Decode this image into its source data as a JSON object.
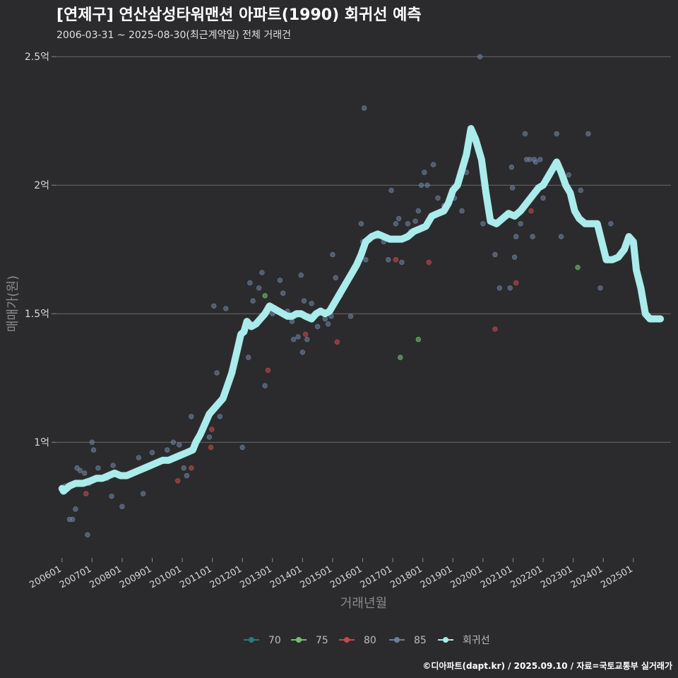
{
  "chart_data": {
    "type": "scatter",
    "title": "[연제구] 연산삼성타워맨션 아파트(1990) 회귀선 예측",
    "subtitle": "2006-03-31 ~ 2025-08-30(최근계약일) 전체 거래건",
    "xlabel": "거래년월",
    "ylabel": "매매가(원)",
    "credit": "©디아파트(dapt.kr) / 2025.09.10 / 자료=국토교통부 실거래가",
    "x_ticks": [
      "200601",
      "200701",
      "200801",
      "200901",
      "201001",
      "201101",
      "201201",
      "201301",
      "201401",
      "201501",
      "201601",
      "201701",
      "201801",
      "201901",
      "202001",
      "202101",
      "202201",
      "202301",
      "202401",
      "202501"
    ],
    "y_ticks": [
      {
        "value": 1.0,
        "label": "1억"
      },
      {
        "value": 1.5,
        "label": "1.5억"
      },
      {
        "value": 2.0,
        "label": "2억"
      },
      {
        "value": 2.5,
        "label": "2.5억"
      }
    ],
    "ylim": [
      0.55,
      2.55
    ],
    "xlim": [
      2005.7,
      2026.25
    ],
    "y_unit": "억",
    "grid": true,
    "legend_position": "bottom",
    "colors": {
      "70": "#2a7a7a",
      "75": "#6fc06f",
      "80": "#c24a4a",
      "85": "#6b7f9e",
      "regression": "#a9eceb"
    },
    "series": [
      {
        "name": "70",
        "points": []
      },
      {
        "name": "75",
        "points": [
          [
            2012.75,
            1.57
          ],
          [
            2017.25,
            1.33
          ],
          [
            2017.85,
            1.4
          ],
          [
            2023.15,
            1.68
          ]
        ]
      },
      {
        "name": "80",
        "points": [
          [
            2006.8,
            0.8
          ],
          [
            2009.85,
            0.85
          ],
          [
            2010.3,
            0.9
          ],
          [
            2010.95,
            0.98
          ],
          [
            2010.98,
            1.05
          ],
          [
            2012.85,
            1.28
          ],
          [
            2014.1,
            1.42
          ],
          [
            2015.15,
            1.39
          ],
          [
            2017.1,
            1.71
          ],
          [
            2018.2,
            1.7
          ],
          [
            2020.4,
            1.44
          ],
          [
            2021.1,
            1.62
          ],
          [
            2021.6,
            1.9
          ]
        ]
      },
      {
        "name": "85",
        "points": [
          [
            2006.1,
            0.83
          ],
          [
            2006.25,
            0.7
          ],
          [
            2006.35,
            0.7
          ],
          [
            2006.45,
            0.74
          ],
          [
            2006.5,
            0.9
          ],
          [
            2006.6,
            0.89
          ],
          [
            2006.75,
            0.88
          ],
          [
            2006.85,
            0.64
          ],
          [
            2006.9,
            0.84
          ],
          [
            2007.0,
            1.0
          ],
          [
            2007.05,
            0.97
          ],
          [
            2007.2,
            0.9
          ],
          [
            2007.5,
            0.86
          ],
          [
            2007.65,
            0.79
          ],
          [
            2007.7,
            0.91
          ],
          [
            2008.0,
            0.75
          ],
          [
            2008.3,
            0.88
          ],
          [
            2008.55,
            0.94
          ],
          [
            2008.7,
            0.8
          ],
          [
            2009.0,
            0.96
          ],
          [
            2009.3,
            0.93
          ],
          [
            2009.5,
            0.97
          ],
          [
            2009.7,
            1.0
          ],
          [
            2009.9,
            0.99
          ],
          [
            2010.05,
            0.9
          ],
          [
            2010.15,
            0.87
          ],
          [
            2010.3,
            1.1
          ],
          [
            2010.9,
            1.02
          ],
          [
            2011.15,
            1.27
          ],
          [
            2011.25,
            1.1
          ],
          [
            2011.45,
            1.52
          ],
          [
            2011.05,
            1.53
          ],
          [
            2012.0,
            0.98
          ],
          [
            2012.2,
            1.33
          ],
          [
            2012.25,
            1.62
          ],
          [
            2012.35,
            1.55
          ],
          [
            2012.55,
            1.6
          ],
          [
            2012.65,
            1.66
          ],
          [
            2012.75,
            1.22
          ],
          [
            2013.0,
            1.5
          ],
          [
            2013.25,
            1.63
          ],
          [
            2013.35,
            1.58
          ],
          [
            2013.5,
            1.51
          ],
          [
            2013.65,
            1.47
          ],
          [
            2013.7,
            1.4
          ],
          [
            2013.85,
            1.41
          ],
          [
            2013.95,
            1.65
          ],
          [
            2014.0,
            1.35
          ],
          [
            2014.05,
            1.55
          ],
          [
            2014.15,
            1.4
          ],
          [
            2014.3,
            1.54
          ],
          [
            2014.5,
            1.45
          ],
          [
            2014.75,
            1.48
          ],
          [
            2014.85,
            1.46
          ],
          [
            2014.95,
            1.49
          ],
          [
            2015.0,
            1.73
          ],
          [
            2015.1,
            1.64
          ],
          [
            2015.25,
            1.57
          ],
          [
            2015.6,
            1.49
          ],
          [
            2015.95,
            1.85
          ],
          [
            2016.0,
            1.78
          ],
          [
            2016.05,
            2.3
          ],
          [
            2016.1,
            1.71
          ],
          [
            2016.25,
            1.79
          ],
          [
            2016.5,
            1.8
          ],
          [
            2016.7,
            1.78
          ],
          [
            2016.85,
            1.71
          ],
          [
            2016.95,
            1.98
          ],
          [
            2017.1,
            1.85
          ],
          [
            2017.2,
            1.87
          ],
          [
            2017.3,
            1.7
          ],
          [
            2017.5,
            1.85
          ],
          [
            2017.6,
            1.82
          ],
          [
            2017.75,
            1.86
          ],
          [
            2017.85,
            1.9
          ],
          [
            2017.95,
            2.0
          ],
          [
            2018.05,
            2.05
          ],
          [
            2018.15,
            2.0
          ],
          [
            2018.35,
            2.08
          ],
          [
            2018.5,
            1.95
          ],
          [
            2018.7,
            1.92
          ],
          [
            2019.05,
            1.95
          ],
          [
            2019.3,
            1.9
          ],
          [
            2019.45,
            2.05
          ],
          [
            2019.6,
            2.18
          ],
          [
            2019.9,
            2.5
          ],
          [
            2020.0,
            1.85
          ],
          [
            2020.1,
            2.0
          ],
          [
            2020.4,
            1.73
          ],
          [
            2020.55,
            1.6
          ],
          [
            2020.9,
            1.6
          ],
          [
            2020.95,
            2.07
          ],
          [
            2020.98,
            1.99
          ],
          [
            2021.05,
            1.72
          ],
          [
            2021.1,
            1.8
          ],
          [
            2021.25,
            1.85
          ],
          [
            2021.4,
            2.2
          ],
          [
            2021.45,
            2.1
          ],
          [
            2021.55,
            2.1
          ],
          [
            2021.65,
            1.8
          ],
          [
            2021.7,
            2.1
          ],
          [
            2021.75,
            2.09
          ],
          [
            2021.85,
            1.99
          ],
          [
            2021.9,
            2.1
          ],
          [
            2022.0,
            1.95
          ],
          [
            2022.45,
            2.2
          ],
          [
            2022.6,
            1.8
          ],
          [
            2022.85,
            2.04
          ],
          [
            2023.25,
            1.98
          ],
          [
            2023.5,
            2.2
          ],
          [
            2023.9,
            1.6
          ],
          [
            2024.25,
            1.85
          ]
        ]
      }
    ],
    "regression": [
      [
        2006.0,
        0.82
      ],
      [
        2006.05,
        0.81
      ],
      [
        2006.25,
        0.83
      ],
      [
        2006.45,
        0.84
      ],
      [
        2006.7,
        0.84
      ],
      [
        2006.95,
        0.85
      ],
      [
        2007.15,
        0.86
      ],
      [
        2007.35,
        0.86
      ],
      [
        2007.55,
        0.87
      ],
      [
        2007.75,
        0.88
      ],
      [
        2007.95,
        0.87
      ],
      [
        2008.15,
        0.87
      ],
      [
        2008.35,
        0.88
      ],
      [
        2008.55,
        0.89
      ],
      [
        2008.75,
        0.9
      ],
      [
        2008.95,
        0.91
      ],
      [
        2009.15,
        0.92
      ],
      [
        2009.35,
        0.93
      ],
      [
        2009.55,
        0.93
      ],
      [
        2009.75,
        0.94
      ],
      [
        2009.95,
        0.95
      ],
      [
        2010.15,
        0.96
      ],
      [
        2010.35,
        0.97
      ],
      [
        2010.45,
        1.0
      ],
      [
        2010.6,
        1.03
      ],
      [
        2010.75,
        1.07
      ],
      [
        2010.9,
        1.11
      ],
      [
        2011.05,
        1.13
      ],
      [
        2011.2,
        1.15
      ],
      [
        2011.35,
        1.17
      ],
      [
        2011.5,
        1.22
      ],
      [
        2011.65,
        1.27
      ],
      [
        2011.75,
        1.32
      ],
      [
        2011.85,
        1.37
      ],
      [
        2011.95,
        1.42
      ],
      [
        2012.05,
        1.43
      ],
      [
        2012.15,
        1.47
      ],
      [
        2012.3,
        1.45
      ],
      [
        2012.45,
        1.46
      ],
      [
        2012.6,
        1.48
      ],
      [
        2012.75,
        1.5
      ],
      [
        2012.9,
        1.53
      ],
      [
        2013.05,
        1.52
      ],
      [
        2013.2,
        1.51
      ],
      [
        2013.35,
        1.5
      ],
      [
        2013.5,
        1.49
      ],
      [
        2013.65,
        1.49
      ],
      [
        2013.8,
        1.5
      ],
      [
        2013.95,
        1.5
      ],
      [
        2014.1,
        1.49
      ],
      [
        2014.3,
        1.48
      ],
      [
        2014.45,
        1.5
      ],
      [
        2014.6,
        1.51
      ],
      [
        2014.75,
        1.5
      ],
      [
        2014.9,
        1.51
      ],
      [
        2015.05,
        1.54
      ],
      [
        2015.2,
        1.57
      ],
      [
        2015.35,
        1.6
      ],
      [
        2015.5,
        1.63
      ],
      [
        2015.65,
        1.66
      ],
      [
        2015.8,
        1.69
      ],
      [
        2015.95,
        1.73
      ],
      [
        2016.1,
        1.78
      ],
      [
        2016.3,
        1.8
      ],
      [
        2016.5,
        1.81
      ],
      [
        2016.7,
        1.8
      ],
      [
        2016.9,
        1.79
      ],
      [
        2017.1,
        1.79
      ],
      [
        2017.3,
        1.79
      ],
      [
        2017.5,
        1.8
      ],
      [
        2017.7,
        1.82
      ],
      [
        2017.9,
        1.83
      ],
      [
        2018.1,
        1.84
      ],
      [
        2018.3,
        1.88
      ],
      [
        2018.5,
        1.89
      ],
      [
        2018.7,
        1.9
      ],
      [
        2018.85,
        1.93
      ],
      [
        2019.0,
        1.98
      ],
      [
        2019.15,
        2.0
      ],
      [
        2019.3,
        2.06
      ],
      [
        2019.45,
        2.12
      ],
      [
        2019.6,
        2.22
      ],
      [
        2019.75,
        2.18
      ],
      [
        2019.95,
        2.1
      ],
      [
        2020.1,
        1.97
      ],
      [
        2020.25,
        1.86
      ],
      [
        2020.45,
        1.85
      ],
      [
        2020.65,
        1.87
      ],
      [
        2020.85,
        1.89
      ],
      [
        2021.05,
        1.88
      ],
      [
        2021.25,
        1.9
      ],
      [
        2021.45,
        1.93
      ],
      [
        2021.65,
        1.96
      ],
      [
        2021.85,
        1.99
      ],
      [
        2022.0,
        2.0
      ],
      [
        2022.15,
        2.03
      ],
      [
        2022.3,
        2.06
      ],
      [
        2022.45,
        2.09
      ],
      [
        2022.6,
        2.05
      ],
      [
        2022.75,
        2.0
      ],
      [
        2022.9,
        1.97
      ],
      [
        2023.05,
        1.9
      ],
      [
        2023.2,
        1.87
      ],
      [
        2023.4,
        1.85
      ],
      [
        2023.6,
        1.85
      ],
      [
        2023.8,
        1.85
      ],
      [
        2023.95,
        1.78
      ],
      [
        2024.1,
        1.71
      ],
      [
        2024.3,
        1.71
      ],
      [
        2024.5,
        1.72
      ],
      [
        2024.7,
        1.75
      ],
      [
        2024.85,
        1.8
      ],
      [
        2025.0,
        1.78
      ],
      [
        2025.1,
        1.67
      ],
      [
        2025.25,
        1.6
      ],
      [
        2025.4,
        1.5
      ],
      [
        2025.55,
        1.48
      ],
      [
        2025.9,
        1.48
      ]
    ],
    "legend": [
      {
        "key": "70",
        "label": "70"
      },
      {
        "key": "75",
        "label": "75"
      },
      {
        "key": "80",
        "label": "80"
      },
      {
        "key": "85",
        "label": "85"
      },
      {
        "key": "regression",
        "label": "회귀선"
      }
    ]
  }
}
